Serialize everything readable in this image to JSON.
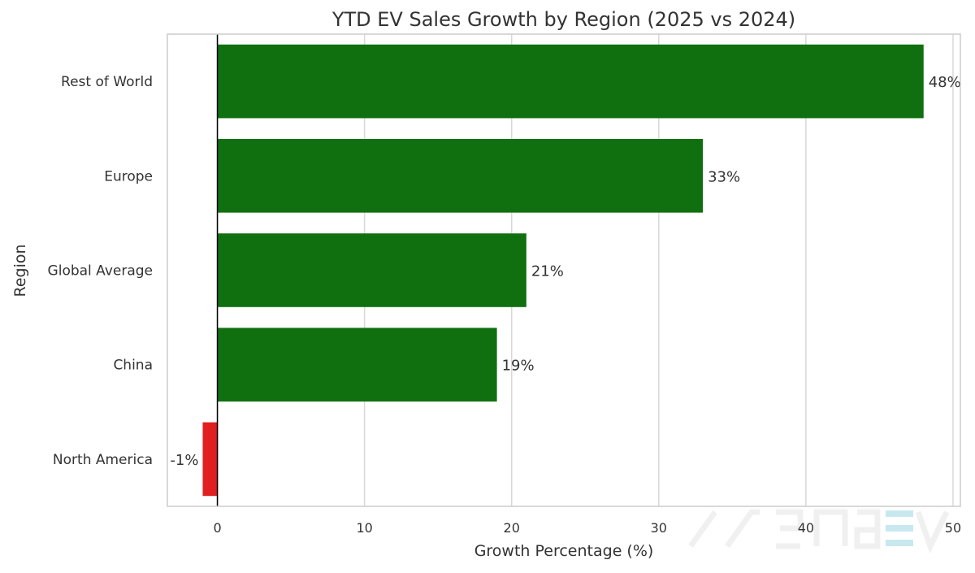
{
  "chart_data": {
    "type": "bar",
    "orientation": "horizontal",
    "title": "YTD EV Sales Growth by Region (2025 vs 2024)",
    "xlabel": "Growth Percentage (%)",
    "ylabel": "Region",
    "categories": [
      "Rest of World",
      "Europe",
      "Global Average",
      "China",
      "North America"
    ],
    "values": [
      48,
      33,
      21,
      19,
      -1
    ],
    "data_labels": [
      "48%",
      "33%",
      "21%",
      "19%",
      "-1%"
    ],
    "xlim": [
      -3.4,
      50.5
    ],
    "xticks": [
      0,
      10,
      20,
      30,
      40,
      50
    ],
    "xtick_labels": [
      "0",
      "10",
      "20",
      "30",
      "40",
      "50"
    ],
    "grid": "vertical",
    "colors": {
      "positive": "#107010",
      "negative": "#e02020"
    },
    "watermark": "arenaEV"
  }
}
